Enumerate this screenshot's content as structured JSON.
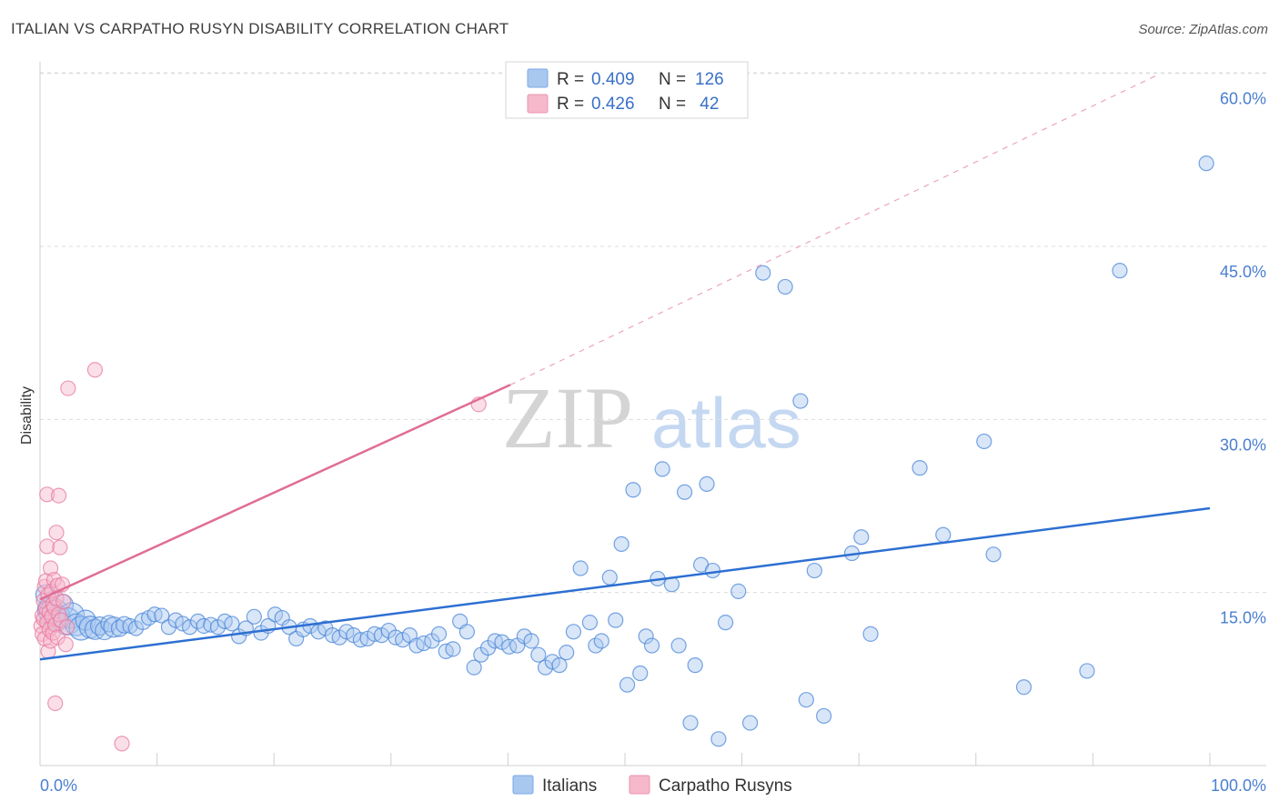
{
  "header": {
    "title": "ITALIAN VS CARPATHO RUSYN DISABILITY CORRELATION CHART",
    "source": "Source: ZipAtlas.com"
  },
  "watermark": {
    "zip": "ZIP",
    "atlas": "atlas"
  },
  "legend_top": {
    "rows": [
      {
        "r_label": "R =",
        "r_value": "0.409",
        "n_label": "N =",
        "n_value": "126",
        "color": "#a8c8f0"
      },
      {
        "r_label": "R =",
        "r_value": "0.426",
        "n_label": "N =",
        "n_value": " 42",
        "color": "#f6b8cb"
      }
    ]
  },
  "legend_bottom": {
    "items": [
      {
        "label": "Italians",
        "color": "#a8c8f0"
      },
      {
        "label": "Carpatho Rusyns",
        "color": "#f6b8cb"
      }
    ]
  },
  "chart_data": {
    "type": "scatter",
    "title": "ITALIAN VS CARPATHO RUSYN DISABILITY CORRELATION CHART",
    "xlabel": "",
    "ylabel": "Disability",
    "xlim": [
      0,
      100
    ],
    "ylim": [
      0,
      61
    ],
    "x_tick_labels": [
      "0.0%",
      "100.0%"
    ],
    "y_ticks": [
      15,
      30,
      45,
      60
    ],
    "y_tick_labels": [
      "15.0%",
      "30.0%",
      "45.0%",
      "60.0%"
    ],
    "grid": true,
    "legend_position": "top-center",
    "series": [
      {
        "name": "Italians",
        "color": "#4a86d8",
        "fill": "#a8c8f0",
        "r": 0.409,
        "n": 126,
        "trend": {
          "x": [
            0,
            100
          ],
          "y": [
            9.2,
            22.3
          ],
          "style": "solid"
        },
        "points": [
          [
            0.5,
            14.8,
            11
          ],
          [
            0.8,
            13.5,
            13
          ],
          [
            1.2,
            13.2,
            16
          ],
          [
            1.5,
            12.8,
            14
          ],
          [
            1.9,
            13.9,
            12
          ],
          [
            2.3,
            12.5,
            15
          ],
          [
            2.7,
            13.0,
            14
          ],
          [
            3.1,
            12.2,
            12
          ],
          [
            3.5,
            11.9,
            13
          ],
          [
            3.9,
            12.6,
            11
          ],
          [
            4.3,
            12.0,
            12
          ],
          [
            4.7,
            11.8,
            11
          ],
          [
            5.1,
            12.1,
            10
          ],
          [
            5.5,
            11.7,
            10
          ],
          [
            5.9,
            12.3,
            9
          ],
          [
            6.3,
            12.0,
            11
          ],
          [
            6.8,
            11.9,
            9
          ],
          [
            7.2,
            12.2,
            9
          ],
          [
            7.7,
            12.1,
            8
          ],
          [
            8.2,
            11.9,
            8
          ],
          [
            8.8,
            12.5,
            9
          ],
          [
            9.3,
            12.8,
            8
          ],
          [
            9.8,
            13.1,
            8
          ],
          [
            10.4,
            13.0,
            8
          ],
          [
            11.0,
            12.0,
            8
          ],
          [
            11.6,
            12.6,
            8
          ],
          [
            12.2,
            12.3,
            8
          ],
          [
            12.8,
            12.0,
            8
          ],
          [
            13.5,
            12.5,
            8
          ],
          [
            14.0,
            12.1,
            8
          ],
          [
            14.6,
            12.2,
            8
          ],
          [
            15.2,
            12.0,
            8
          ],
          [
            15.8,
            12.5,
            8
          ],
          [
            16.4,
            12.3,
            8
          ],
          [
            17.0,
            11.2,
            8
          ],
          [
            17.6,
            11.9,
            8
          ],
          [
            18.3,
            12.9,
            8
          ],
          [
            18.9,
            11.5,
            8
          ],
          [
            19.5,
            12.1,
            8
          ],
          [
            20.1,
            13.1,
            8
          ],
          [
            20.7,
            12.8,
            8
          ],
          [
            21.3,
            12.0,
            8
          ],
          [
            21.9,
            11.0,
            8
          ],
          [
            22.5,
            11.8,
            8
          ],
          [
            23.1,
            12.1,
            8
          ],
          [
            23.8,
            11.6,
            8
          ],
          [
            24.4,
            11.9,
            8
          ],
          [
            25.0,
            11.3,
            8
          ],
          [
            25.6,
            11.1,
            8
          ],
          [
            26.2,
            11.6,
            8
          ],
          [
            26.8,
            11.3,
            8
          ],
          [
            27.4,
            10.9,
            8
          ],
          [
            28.0,
            11.0,
            8
          ],
          [
            28.6,
            11.4,
            8
          ],
          [
            29.2,
            11.3,
            8
          ],
          [
            29.8,
            11.7,
            8
          ],
          [
            30.4,
            11.1,
            8
          ],
          [
            31.0,
            10.9,
            8
          ],
          [
            31.6,
            11.3,
            8
          ],
          [
            32.2,
            10.4,
            8
          ],
          [
            32.8,
            10.6,
            8
          ],
          [
            33.5,
            10.8,
            8
          ],
          [
            34.1,
            11.4,
            8
          ],
          [
            34.7,
            9.9,
            8
          ],
          [
            35.3,
            10.1,
            8
          ],
          [
            35.9,
            12.5,
            8
          ],
          [
            36.5,
            11.6,
            8
          ],
          [
            37.1,
            8.5,
            8
          ],
          [
            37.7,
            9.6,
            8
          ],
          [
            38.3,
            10.2,
            8
          ],
          [
            38.9,
            10.8,
            8
          ],
          [
            39.5,
            10.7,
            8
          ],
          [
            40.1,
            10.3,
            8
          ],
          [
            40.8,
            10.4,
            8
          ],
          [
            41.4,
            11.2,
            8
          ],
          [
            42.0,
            10.8,
            8
          ],
          [
            42.6,
            9.6,
            8
          ],
          [
            43.2,
            8.5,
            8
          ],
          [
            43.8,
            9.0,
            8
          ],
          [
            44.4,
            8.7,
            8
          ],
          [
            45.0,
            9.8,
            8
          ],
          [
            45.6,
            11.6,
            8
          ],
          [
            46.2,
            17.1,
            8
          ],
          [
            47.0,
            12.4,
            8
          ],
          [
            47.5,
            10.4,
            8
          ],
          [
            48.0,
            10.8,
            8
          ],
          [
            48.7,
            16.3,
            8
          ],
          [
            49.2,
            12.6,
            8
          ],
          [
            49.7,
            19.2,
            8
          ],
          [
            50.2,
            7.0,
            8
          ],
          [
            50.7,
            23.9,
            8
          ],
          [
            51.3,
            8.0,
            8
          ],
          [
            51.8,
            11.2,
            8
          ],
          [
            52.3,
            10.4,
            8
          ],
          [
            52.8,
            16.2,
            8
          ],
          [
            53.2,
            25.7,
            8
          ],
          [
            54.0,
            15.7,
            8
          ],
          [
            54.6,
            10.4,
            8
          ],
          [
            55.1,
            23.7,
            8
          ],
          [
            55.6,
            3.7,
            8
          ],
          [
            56.0,
            8.7,
            8
          ],
          [
            56.5,
            17.4,
            8
          ],
          [
            57.0,
            24.4,
            8
          ],
          [
            57.5,
            16.9,
            8
          ],
          [
            58.0,
            2.3,
            8
          ],
          [
            58.6,
            12.4,
            8
          ],
          [
            59.7,
            15.1,
            8
          ],
          [
            60.7,
            3.7,
            8
          ],
          [
            61.8,
            42.7,
            8
          ],
          [
            63.7,
            41.5,
            8
          ],
          [
            65.0,
            31.6,
            8
          ],
          [
            65.5,
            5.7,
            8
          ],
          [
            66.2,
            16.9,
            8
          ],
          [
            67.0,
            4.3,
            8
          ],
          [
            69.4,
            18.4,
            8
          ],
          [
            70.2,
            19.8,
            8
          ],
          [
            71.0,
            11.4,
            8
          ],
          [
            75.2,
            25.8,
            8
          ],
          [
            77.2,
            20.0,
            8
          ],
          [
            80.7,
            28.1,
            8
          ],
          [
            81.5,
            18.3,
            8
          ],
          [
            84.1,
            6.8,
            8
          ],
          [
            89.5,
            8.2,
            8
          ],
          [
            92.3,
            42.9,
            8
          ],
          [
            99.7,
            52.2,
            8
          ]
        ]
      },
      {
        "name": "Carpatho Rusyns",
        "color": "#e77aa0",
        "fill": "#f6b8cb",
        "r": 0.426,
        "n": 42,
        "trend": {
          "x": [
            0,
            40.2
          ],
          "y": [
            14.4,
            33.0
          ],
          "dashed_to": [
            95.6,
            59.9
          ]
        },
        "points": [
          [
            0.1,
            12.1,
            8
          ],
          [
            0.2,
            11.4,
            8
          ],
          [
            0.2,
            13.0,
            8
          ],
          [
            0.3,
            14.3,
            8
          ],
          [
            0.3,
            12.7,
            8
          ],
          [
            0.4,
            15.5,
            8
          ],
          [
            0.4,
            11.0,
            8
          ],
          [
            0.5,
            13.6,
            8
          ],
          [
            0.5,
            16.0,
            8
          ],
          [
            0.6,
            12.4,
            8
          ],
          [
            0.6,
            19.0,
            8
          ],
          [
            0.6,
            23.5,
            8
          ],
          [
            0.7,
            9.9,
            8
          ],
          [
            0.7,
            14.8,
            8
          ],
          [
            0.8,
            11.8,
            8
          ],
          [
            0.8,
            13.3,
            8
          ],
          [
            0.9,
            17.1,
            8
          ],
          [
            0.9,
            10.8,
            8
          ],
          [
            1.0,
            15.1,
            8
          ],
          [
            1.0,
            12.9,
            8
          ],
          [
            1.1,
            14.0,
            8
          ],
          [
            1.1,
            11.5,
            8
          ],
          [
            1.2,
            16.1,
            8
          ],
          [
            1.2,
            13.7,
            8
          ],
          [
            1.3,
            5.4,
            8
          ],
          [
            1.3,
            12.2,
            8
          ],
          [
            1.4,
            20.2,
            8
          ],
          [
            1.4,
            14.5,
            8
          ],
          [
            1.5,
            11.1,
            8
          ],
          [
            1.5,
            15.6,
            8
          ],
          [
            1.6,
            13.1,
            8
          ],
          [
            1.6,
            23.4,
            8
          ],
          [
            1.7,
            18.9,
            8
          ],
          [
            1.8,
            12.6,
            8
          ],
          [
            1.9,
            15.7,
            8
          ],
          [
            2.0,
            14.2,
            8
          ],
          [
            2.2,
            10.5,
            8
          ],
          [
            2.3,
            12.0,
            8
          ],
          [
            2.4,
            32.7,
            8
          ],
          [
            4.7,
            34.3,
            8
          ],
          [
            7.0,
            1.9,
            8
          ],
          [
            37.5,
            31.3,
            8
          ]
        ]
      }
    ]
  }
}
